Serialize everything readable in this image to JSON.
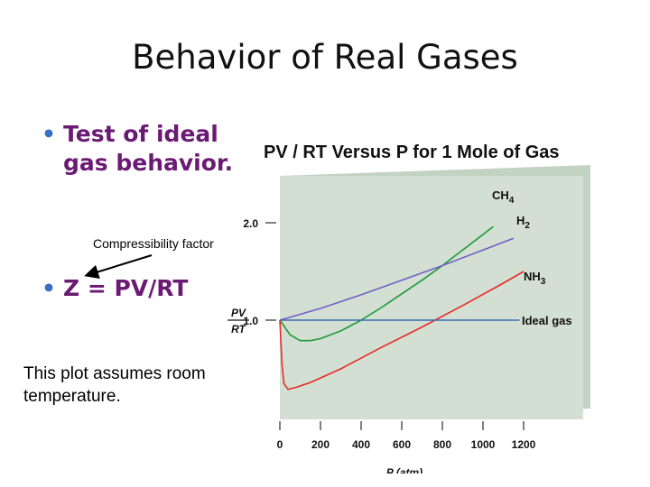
{
  "slide": {
    "title": "Behavior of Real Gases",
    "bullet1": "Test of ideal gas behavior.",
    "bullet2": "Z = PV/RT",
    "annotation": "Compressibility factor",
    "note": "This plot assumes room temperature.",
    "bullet_color": "#6b1a73",
    "bullet_dot_color": "#3a6fc4"
  },
  "chart_data": {
    "type": "line",
    "title": "PV / RT  Versus P for 1 Mole of Gas",
    "xlabel": "P (atm)",
    "ylabel": "PV/RT",
    "xticks": [
      "0",
      "200",
      "400",
      "600",
      "800",
      "1000",
      "1200"
    ],
    "yticks": [
      "1.0",
      "2.0"
    ],
    "xlim": [
      0,
      1200
    ],
    "ylim": [
      0.3,
      2.3
    ],
    "background_color": "#d2dfd2",
    "series": [
      {
        "name": "CH4",
        "color": "#1e9a3a",
        "x": [
          0,
          50,
          100,
          150,
          200,
          300,
          400,
          500,
          600,
          700,
          800,
          900,
          1000,
          1050
        ],
        "y": [
          1.0,
          0.85,
          0.79,
          0.79,
          0.81,
          0.89,
          1.0,
          1.13,
          1.27,
          1.41,
          1.56,
          1.72,
          1.88,
          1.96
        ]
      },
      {
        "name": "H2",
        "color": "#7060c8",
        "x": [
          0,
          200,
          400,
          600,
          800,
          1000,
          1150
        ],
        "y": [
          1.0,
          1.12,
          1.26,
          1.41,
          1.56,
          1.72,
          1.84
        ]
      },
      {
        "name": "NH3",
        "color": "#e82a2a",
        "x": [
          0,
          10,
          20,
          40,
          80,
          150,
          300,
          500,
          700,
          900,
          1100,
          1200
        ],
        "y": [
          1.0,
          0.55,
          0.35,
          0.29,
          0.31,
          0.36,
          0.5,
          0.72,
          0.93,
          1.15,
          1.38,
          1.5
        ]
      },
      {
        "name": "Ideal gas",
        "color": "#3b6fb3",
        "x": [
          0,
          1180
        ],
        "y": [
          1.0,
          1.0
        ]
      }
    ]
  }
}
